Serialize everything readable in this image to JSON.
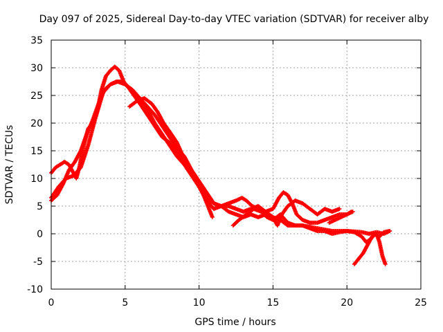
{
  "chart_data": {
    "type": "scatter",
    "title": "Day 097 of 2025, Sidereal Day-to-day VTEC variation (SDTVAR) for receiver alby",
    "xlabel": "GPS time / hours",
    "ylabel": "SDTVAR / TECUs",
    "xlim": [
      0,
      25
    ],
    "ylim": [
      -10,
      35
    ],
    "xticks": [
      0,
      5,
      10,
      15,
      20,
      25
    ],
    "yticks": [
      -10,
      -5,
      0,
      5,
      10,
      15,
      20,
      25,
      30,
      35
    ],
    "grid": true,
    "marker": "+",
    "color": "#ff0000",
    "series": [
      {
        "name": "track-a",
        "points": [
          [
            0.0,
            11.0
          ],
          [
            0.3,
            12.0
          ],
          [
            0.6,
            12.5
          ],
          [
            0.9,
            13.0
          ],
          [
            1.2,
            12.5
          ],
          [
            1.5,
            11.0
          ],
          [
            1.7,
            10.0
          ],
          [
            1.9,
            12.0
          ],
          [
            2.2,
            16.0
          ],
          [
            2.5,
            19.0
          ],
          [
            2.8,
            20.0
          ],
          [
            3.1,
            22.0
          ],
          [
            3.4,
            26.0
          ],
          [
            3.7,
            28.5
          ],
          [
            4.0,
            29.5
          ],
          [
            4.3,
            30.2
          ],
          [
            4.6,
            29.5
          ],
          [
            4.9,
            27.5
          ],
          [
            5.2,
            26.5
          ],
          [
            5.6,
            25.5
          ],
          [
            6.0,
            24.5
          ],
          [
            6.5,
            22.5
          ],
          [
            7.0,
            20.0
          ],
          [
            7.5,
            18.0
          ],
          [
            8.0,
            16.0
          ],
          [
            8.5,
            14.0
          ],
          [
            9.0,
            12.5
          ],
          [
            9.5,
            10.5
          ],
          [
            10.0,
            8.5
          ],
          [
            10.5,
            6.5
          ],
          [
            11.0,
            5.5
          ],
          [
            11.5,
            5.0
          ],
          [
            12.0,
            5.5
          ],
          [
            12.5,
            6.0
          ],
          [
            12.9,
            6.5
          ],
          [
            13.2,
            6.0
          ],
          [
            13.6,
            5.0
          ],
          [
            14.0,
            4.5
          ],
          [
            14.5,
            4.0
          ],
          [
            15.0,
            4.5
          ],
          [
            15.4,
            6.5
          ],
          [
            15.7,
            7.5
          ],
          [
            16.0,
            7.0
          ],
          [
            16.3,
            5.5
          ],
          [
            16.6,
            3.5
          ],
          [
            17.0,
            2.5
          ],
          [
            17.5,
            2.0
          ],
          [
            18.0,
            2.0
          ],
          [
            18.5,
            2.5
          ],
          [
            19.0,
            3.0
          ],
          [
            19.5,
            3.5
          ],
          [
            20.0,
            3.5
          ],
          [
            20.3,
            4.0
          ]
        ]
      },
      {
        "name": "track-b",
        "points": [
          [
            0.0,
            6.0
          ],
          [
            0.4,
            7.0
          ],
          [
            0.8,
            9.0
          ],
          [
            1.2,
            11.5
          ],
          [
            1.6,
            13.0
          ],
          [
            2.0,
            15.0
          ],
          [
            2.4,
            18.0
          ],
          [
            2.8,
            20.5
          ],
          [
            3.2,
            23.5
          ],
          [
            3.6,
            26.0
          ],
          [
            4.0,
            27.0
          ],
          [
            4.4,
            27.5
          ],
          [
            4.8,
            27.5
          ],
          [
            5.2,
            26.5
          ],
          [
            5.6,
            25.0
          ],
          [
            6.0,
            23.5
          ],
          [
            6.5,
            21.5
          ],
          [
            7.0,
            19.5
          ],
          [
            7.5,
            17.5
          ],
          [
            8.0,
            16.5
          ],
          [
            8.5,
            15.0
          ],
          [
            9.0,
            13.0
          ],
          [
            9.5,
            11.0
          ],
          [
            10.0,
            9.0
          ],
          [
            10.3,
            7.0
          ],
          [
            10.6,
            5.0
          ],
          [
            10.9,
            3.0
          ]
        ]
      },
      {
        "name": "track-c",
        "points": [
          [
            5.3,
            23.0
          ],
          [
            5.8,
            24.0
          ],
          [
            6.3,
            24.5
          ],
          [
            6.8,
            23.5
          ],
          [
            7.2,
            22.0
          ],
          [
            7.6,
            20.0
          ],
          [
            8.0,
            18.5
          ],
          [
            8.5,
            16.5
          ],
          [
            9.0,
            13.5
          ],
          [
            9.5,
            11.0
          ],
          [
            10.0,
            8.5
          ],
          [
            10.5,
            6.0
          ],
          [
            11.0,
            4.5
          ],
          [
            11.5,
            5.0
          ],
          [
            12.0,
            5.0
          ],
          [
            12.5,
            4.5
          ],
          [
            13.0,
            4.0
          ],
          [
            13.5,
            4.5
          ],
          [
            14.0,
            5.0
          ],
          [
            14.5,
            4.0
          ],
          [
            15.0,
            3.0
          ],
          [
            15.3,
            1.5
          ],
          [
            15.6,
            3.5
          ],
          [
            16.0,
            5.0
          ],
          [
            16.5,
            6.0
          ],
          [
            17.0,
            5.5
          ],
          [
            17.5,
            4.5
          ],
          [
            18.0,
            3.5
          ],
          [
            18.5,
            4.5
          ],
          [
            19.0,
            4.0
          ],
          [
            19.5,
            4.5
          ]
        ]
      },
      {
        "name": "track-d",
        "points": [
          [
            0.0,
            6.5
          ],
          [
            0.5,
            8.5
          ],
          [
            1.0,
            10.0
          ],
          [
            1.5,
            10.5
          ],
          [
            2.0,
            12.0
          ],
          [
            2.5,
            16.0
          ],
          [
            3.0,
            21.0
          ],
          [
            3.5,
            25.5
          ],
          [
            4.0,
            27.0
          ],
          [
            4.5,
            27.5
          ],
          [
            5.0,
            27.0
          ],
          [
            5.5,
            26.0
          ],
          [
            6.0,
            24.5
          ],
          [
            6.5,
            23.0
          ],
          [
            7.0,
            21.5
          ],
          [
            7.5,
            19.5
          ],
          [
            8.0,
            17.5
          ],
          [
            8.5,
            15.5
          ],
          [
            9.0,
            14.0
          ],
          [
            9.5,
            11.5
          ],
          [
            10.0,
            9.5
          ],
          [
            10.5,
            7.5
          ],
          [
            11.0,
            5.5
          ],
          [
            11.5,
            5.0
          ],
          [
            12.0,
            4.0
          ],
          [
            12.5,
            3.5
          ],
          [
            13.0,
            3.0
          ],
          [
            13.5,
            3.5
          ],
          [
            14.0,
            3.0
          ],
          [
            14.5,
            3.5
          ],
          [
            15.0,
            3.0
          ],
          [
            15.5,
            2.5
          ],
          [
            16.0,
            1.5
          ],
          [
            17.0,
            1.5
          ],
          [
            18.0,
            1.0
          ],
          [
            19.0,
            0.5
          ],
          [
            20.0,
            0.5
          ],
          [
            21.0,
            0.3
          ],
          [
            21.5,
            0.0
          ],
          [
            22.0,
            0.3
          ],
          [
            22.5,
            0.0
          ],
          [
            22.9,
            0.5
          ]
        ]
      },
      {
        "name": "track-e",
        "points": [
          [
            12.3,
            1.5
          ],
          [
            12.7,
            2.5
          ],
          [
            13.2,
            3.5
          ],
          [
            13.7,
            4.5
          ],
          [
            14.2,
            4.0
          ],
          [
            14.6,
            3.0
          ],
          [
            15.0,
            2.5
          ],
          [
            15.5,
            3.5
          ],
          [
            16.0,
            2.0
          ],
          [
            16.5,
            1.5
          ],
          [
            17.0,
            1.5
          ],
          [
            17.5,
            1.0
          ],
          [
            18.0,
            0.5
          ],
          [
            18.5,
            0.5
          ],
          [
            19.0,
            0.0
          ],
          [
            19.5,
            0.3
          ],
          [
            20.0,
            0.5
          ],
          [
            20.5,
            0.3
          ],
          [
            21.0,
            -0.5
          ],
          [
            21.3,
            -1.5
          ],
          [
            21.6,
            -1.0
          ],
          [
            21.9,
            0.0
          ],
          [
            22.2,
            -0.5
          ],
          [
            22.5,
            0.3
          ],
          [
            22.9,
            0.5
          ]
        ]
      },
      {
        "name": "track-f",
        "points": [
          [
            20.5,
            -5.5
          ],
          [
            20.8,
            -4.5
          ],
          [
            21.1,
            -3.5
          ],
          [
            21.4,
            -2.0
          ],
          [
            21.7,
            -0.5
          ],
          [
            22.0,
            0.0
          ],
          [
            22.2,
            -1.5
          ],
          [
            22.4,
            -4.0
          ],
          [
            22.6,
            -5.5
          ]
        ]
      },
      {
        "name": "track-g",
        "points": [
          [
            18.8,
            2.0
          ],
          [
            19.2,
            2.5
          ],
          [
            19.6,
            3.0
          ],
          [
            20.0,
            3.5
          ],
          [
            20.4,
            4.0
          ]
        ]
      }
    ]
  }
}
